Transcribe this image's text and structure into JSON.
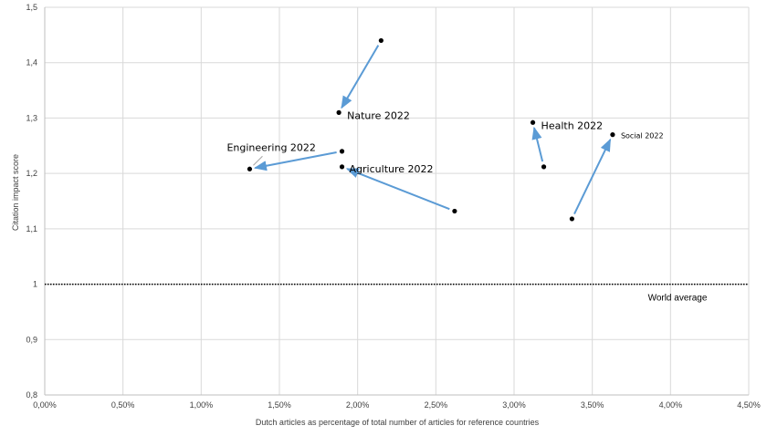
{
  "chart_data": {
    "type": "scatter",
    "xlabel": "Dutch articles as percentage of total number of articles for reference countries",
    "ylabel": "Citation impact score",
    "xlim": [
      0,
      0.045
    ],
    "ylim": [
      0.8,
      1.5
    ],
    "x_ticks": [
      "0,00%",
      "0,50%",
      "1,00%",
      "1,50%",
      "2,00%",
      "2,50%",
      "3,00%",
      "3,50%",
      "4,00%",
      "4,50%"
    ],
    "y_ticks": [
      "0,8",
      "0,9",
      "1",
      "1,1",
      "1,2",
      "1,3",
      "1,4",
      "1,5"
    ],
    "grid": true,
    "colors": {
      "arrow": "#5B9BD5",
      "point": "#000000",
      "grid": "#D9D9D9"
    },
    "reference_line": {
      "y": 1.0,
      "label": "World average",
      "style": "dotted"
    },
    "fields": [
      {
        "label": "Nature 2022",
        "from": [
          0.0215,
          1.44
        ],
        "to": [
          0.0188,
          1.31
        ]
      },
      {
        "label": "Engineering 2022",
        "from": [
          0.019,
          1.24
        ],
        "to": [
          0.0131,
          1.208
        ]
      },
      {
        "label": "Agriculture 2022",
        "from": [
          0.0262,
          1.132
        ],
        "to": [
          0.019,
          1.212
        ]
      },
      {
        "label": "Health 2022",
        "from": [
          0.0319,
          1.212
        ],
        "to": [
          0.0312,
          1.292
        ]
      },
      {
        "label": "Social 2022",
        "from": [
          0.0337,
          1.118
        ],
        "to": [
          0.0363,
          1.27
        ]
      }
    ]
  }
}
